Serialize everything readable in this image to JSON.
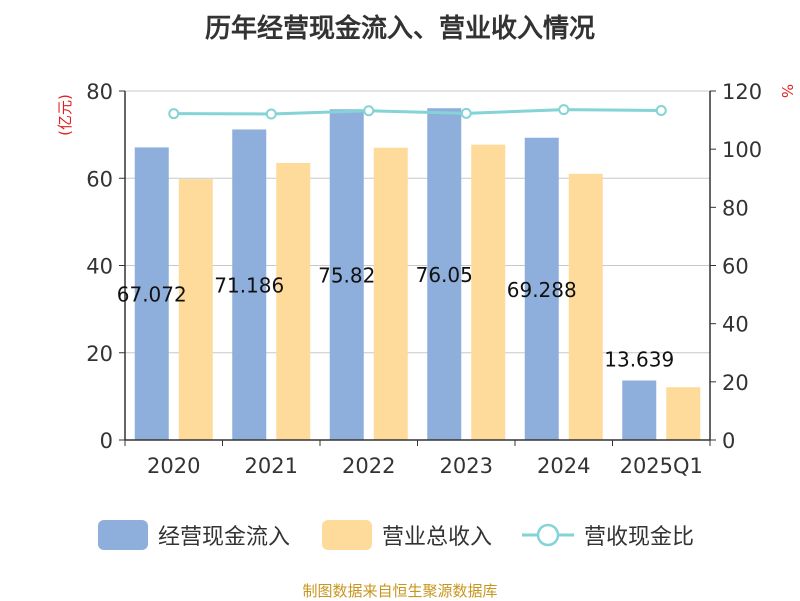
{
  "title": "历年经营现金流入、营业收入情况",
  "source": "制图数据来自恒生聚源数据库",
  "chart_data": {
    "type": "bar",
    "categories": [
      "2020",
      "2021",
      "2022",
      "2023",
      "2024",
      "2025Q1"
    ],
    "y_left": {
      "unit_label": "(亿元)",
      "ylim": [
        0,
        80
      ],
      "ticks": [
        "0",
        "20",
        "40",
        "60",
        "80"
      ]
    },
    "y_right": {
      "unit_label": "%",
      "ylim": [
        0,
        120
      ],
      "ticks": [
        "0",
        "20",
        "40",
        "60",
        "80",
        "100",
        "120"
      ]
    },
    "series": [
      {
        "name": "经营现金流入",
        "type": "bar",
        "axis": "left",
        "color": "#8eaedb",
        "values": [
          67.072,
          71.186,
          75.82,
          76.05,
          69.288,
          13.639
        ],
        "labels": [
          "67.072",
          "71.186",
          "75.82",
          "76.05",
          "69.288",
          "13.639"
        ]
      },
      {
        "name": "营业总收入",
        "type": "bar",
        "axis": "left",
        "color": "#fedb9b",
        "values": [
          59.8,
          63.5,
          67.0,
          67.7,
          61.0,
          12.1
        ]
      },
      {
        "name": "营收现金比",
        "type": "line",
        "axis": "right",
        "color": "#84d3d6",
        "values": [
          112.2,
          112.1,
          113.2,
          112.3,
          113.6,
          113.3
        ]
      }
    ],
    "grid": true,
    "legend_position": "bottom"
  }
}
